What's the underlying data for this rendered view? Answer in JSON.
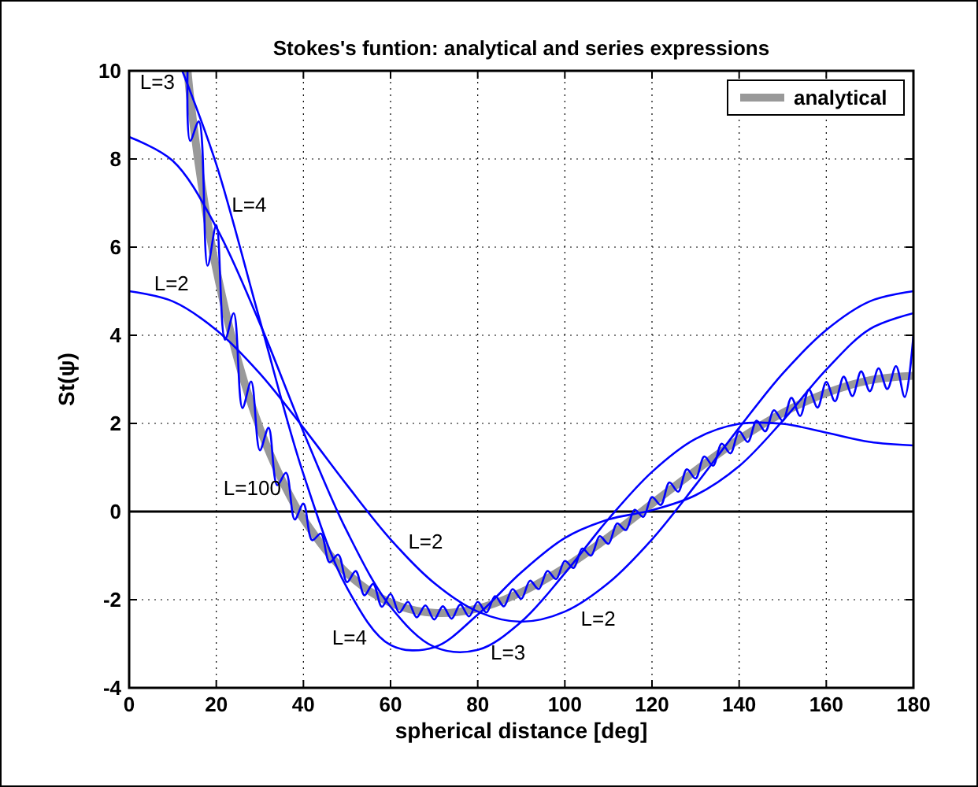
{
  "chart_data": {
    "type": "line",
    "title": "Stokes's funtion: analytical and series expressions",
    "xlabel": "spherical distance [deg]",
    "ylabel": "St(ψ)",
    "xlim": [
      0,
      180
    ],
    "xticks": [
      0,
      20,
      40,
      60,
      80,
      100,
      120,
      140,
      160,
      180
    ],
    "ylim": [
      -4,
      10
    ],
    "yticks": [
      -4,
      -2,
      0,
      2,
      4,
      6,
      8,
      10
    ],
    "grid": true,
    "legend": "top right",
    "ref_lines": [
      {
        "axis": "y",
        "value": 0,
        "color": "#000000"
      }
    ],
    "series": [
      {
        "name": "analytical",
        "color": "#999999",
        "x": [
          13.4,
          14,
          15,
          16,
          18,
          20,
          25,
          30,
          35,
          40,
          50,
          60,
          70,
          80,
          90,
          100,
          110,
          120,
          130,
          140,
          150,
          160,
          170,
          180
        ],
        "values": [
          10.0,
          9.41,
          8.6,
          7.85,
          6.58,
          5.5,
          3.42,
          1.89,
          0.73,
          -0.17,
          -1.4,
          -2.07,
          -2.3,
          -2.2,
          -1.83,
          -1.27,
          -0.58,
          0.18,
          0.93,
          1.64,
          2.24,
          2.69,
          2.98,
          3.08
        ]
      },
      {
        "color": "#0000ff",
        "x": [
          0,
          10,
          20,
          30,
          40,
          50,
          60,
          70,
          80,
          90,
          100,
          110,
          120,
          130,
          140,
          150,
          160,
          170,
          180
        ],
        "values": [
          5,
          4.77,
          4.12,
          3.13,
          1.9,
          0.6,
          -0.63,
          -1.62,
          -2.27,
          -2.5,
          -2.27,
          -1.62,
          -0.63,
          0.6,
          1.9,
          3.13,
          4.12,
          4.77,
          5
        ]
      },
      {
        "color": "#0000ff",
        "x": [
          0,
          10,
          20,
          30,
          40,
          50,
          60,
          70,
          80,
          90,
          100,
          110,
          120,
          130,
          140,
          150,
          160,
          170,
          180
        ],
        "values": [
          8.5,
          7.96,
          6.45,
          4.27,
          1.81,
          -0.45,
          -2.16,
          -3.07,
          -3.14,
          -2.5,
          -1.4,
          -0.17,
          0.9,
          1.65,
          1.99,
          1.99,
          1.79,
          1.58,
          1.5
        ]
      },
      {
        "color": "#0000ff",
        "x": [
          12.2,
          20,
          30,
          40,
          50,
          60,
          70,
          80,
          90,
          100,
          110,
          120,
          130,
          140,
          150,
          160,
          170,
          180
        ],
        "values": [
          10.0,
          7.88,
          4.34,
          0.85,
          -1.73,
          -3.03,
          -3.08,
          -2.34,
          -1.38,
          -0.6,
          -0.18,
          0.03,
          0.37,
          1.03,
          2.06,
          3.22,
          4.14,
          4.5
        ]
      },
      {
        "color": "#0000ff",
        "x": [
          13.4,
          14,
          16,
          18,
          20,
          22,
          24,
          26,
          28,
          30,
          32,
          34,
          36,
          38,
          40,
          42,
          44,
          46,
          48,
          50,
          52,
          54,
          56,
          58,
          60,
          62,
          64,
          66,
          68,
          70,
          72,
          74,
          76,
          78,
          80,
          82,
          84,
          86,
          88,
          90,
          92,
          94,
          96,
          98,
          100,
          102,
          104,
          106,
          108,
          110,
          112,
          114,
          116,
          118,
          120,
          122,
          124,
          126,
          128,
          130,
          132,
          134,
          136,
          138,
          140,
          142,
          144,
          146,
          148,
          150,
          152,
          154,
          156,
          158,
          160,
          162,
          164,
          166,
          168,
          170,
          172,
          174,
          176,
          178,
          180
        ],
        "values": [
          10.0,
          8.41,
          8.85,
          5.58,
          6.5,
          3.9,
          4.5,
          2.35,
          2.95,
          1.39,
          1.9,
          0.6,
          0.88,
          -0.18,
          0.18,
          -0.65,
          -0.5,
          -1.15,
          -0.98,
          -1.6,
          -1.35,
          -1.9,
          -1.64,
          -2.16,
          -1.87,
          -2.29,
          -2.05,
          -2.4,
          -2.13,
          -2.45,
          -2.15,
          -2.43,
          -2.11,
          -2.38,
          -2.05,
          -2.29,
          -1.92,
          -2.15,
          -1.76,
          -1.98,
          -1.57,
          -1.76,
          -1.35,
          -1.53,
          -1.12,
          -1.28,
          -0.84,
          -1.0,
          -0.56,
          -0.73,
          -0.27,
          -0.42,
          0.04,
          -0.12,
          0.33,
          0.15,
          0.66,
          0.45,
          0.96,
          0.75,
          1.25,
          1.04,
          1.54,
          1.32,
          1.82,
          1.58,
          2.06,
          1.82,
          2.3,
          2.06,
          2.58,
          2.17,
          2.77,
          2.36,
          2.94,
          2.5,
          3.06,
          2.62,
          3.18,
          2.73,
          3.25,
          2.78,
          3.3,
          2.6,
          4.0
        ]
      }
    ],
    "annotations": [
      "L=3",
      "L=4",
      "L=2",
      "L=100",
      "L=2",
      "L=4",
      "L=3",
      "L=2"
    ]
  }
}
